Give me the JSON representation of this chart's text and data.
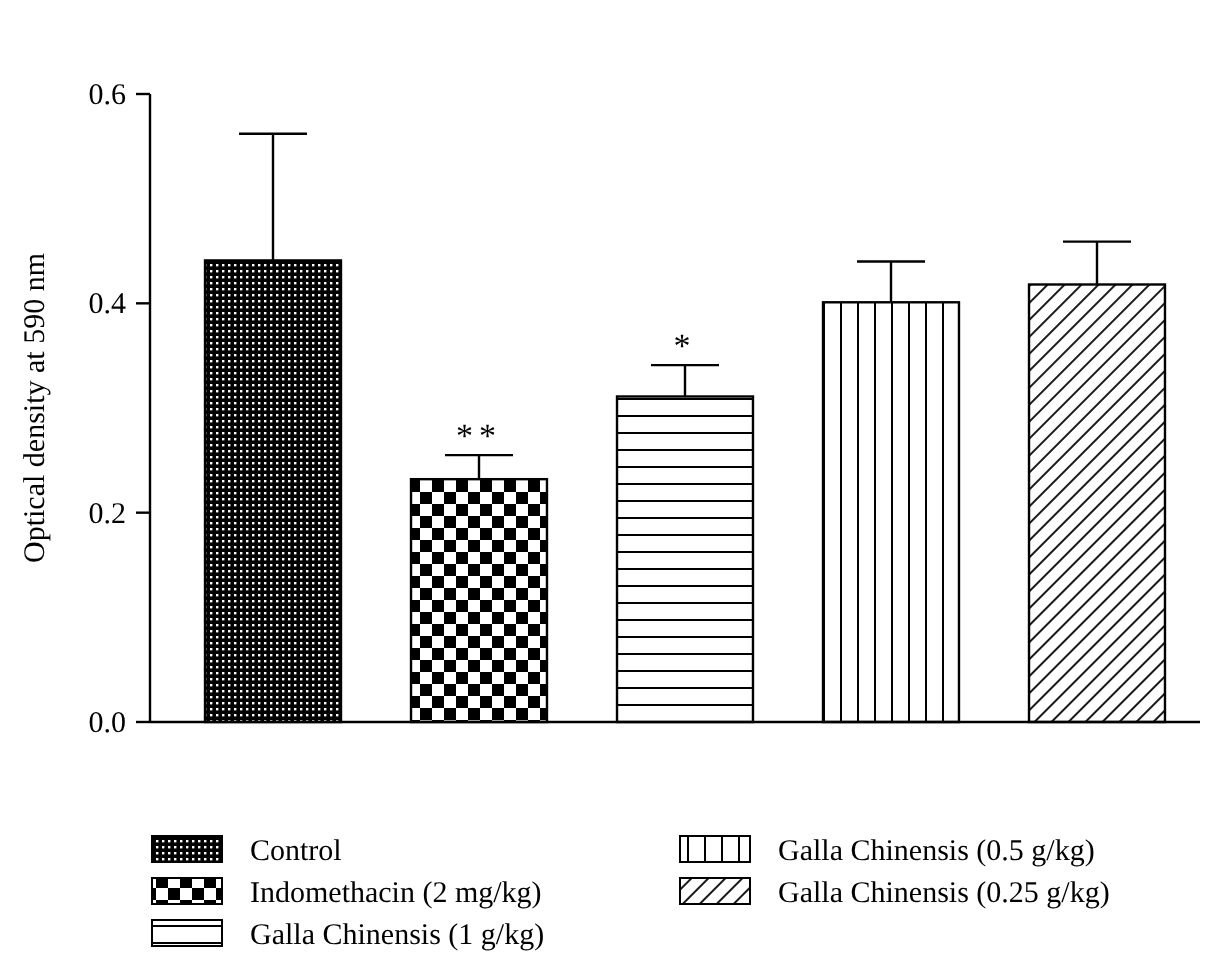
{
  "chart_data": {
    "type": "bar",
    "ylabel": "Optical density at 590 nm",
    "categories": [
      null,
      null,
      null,
      null,
      null
    ],
    "ylim": [
      0,
      0.6
    ],
    "yticks": [
      {
        "value": 0,
        "label": "0.0"
      },
      0.2,
      0.4,
      0.6
    ],
    "legend": "bottom",
    "grid": false,
    "series": [
      {
        "name": "Control",
        "color": "#000000",
        "values": [
          0.441,
          null,
          null,
          null,
          null
        ],
        "errors": [
          [
            0.441,
            0.562
          ],
          null,
          null,
          null,
          null
        ]
      },
      {
        "name": "Indomethacin (2 mg/kg)",
        "color": "#000000",
        "values": [
          null,
          0.232,
          null,
          null,
          null
        ],
        "errors": [
          null,
          [
            0.232,
            0.255
          ],
          null,
          null,
          null
        ],
        "value_labels": [
          null,
          "**",
          null,
          null,
          null
        ]
      },
      {
        "name": "Galla Chinensis (1 g/kg)",
        "color": "#000000",
        "values": [
          null,
          null,
          0.311,
          null,
          null
        ],
        "errors": [
          null,
          null,
          [
            0.311,
            0.341
          ],
          null,
          null
        ],
        "value_labels": [
          null,
          null,
          "*",
          null,
          null
        ]
      },
      {
        "name": "Galla Chinensis (0.5 g/kg)",
        "color": "#000000",
        "values": [
          null,
          null,
          null,
          0.401,
          null
        ],
        "errors": [
          null,
          null,
          null,
          [
            0.401,
            0.44
          ],
          null
        ]
      },
      {
        "name": "Galla Chinensis (0.25 g/kg)",
        "color": "#000000",
        "values": [
          null,
          null,
          null,
          null,
          0.418
        ],
        "errors": [
          null,
          null,
          null,
          null,
          [
            0.418,
            0.459
          ]
        ]
      }
    ]
  }
}
